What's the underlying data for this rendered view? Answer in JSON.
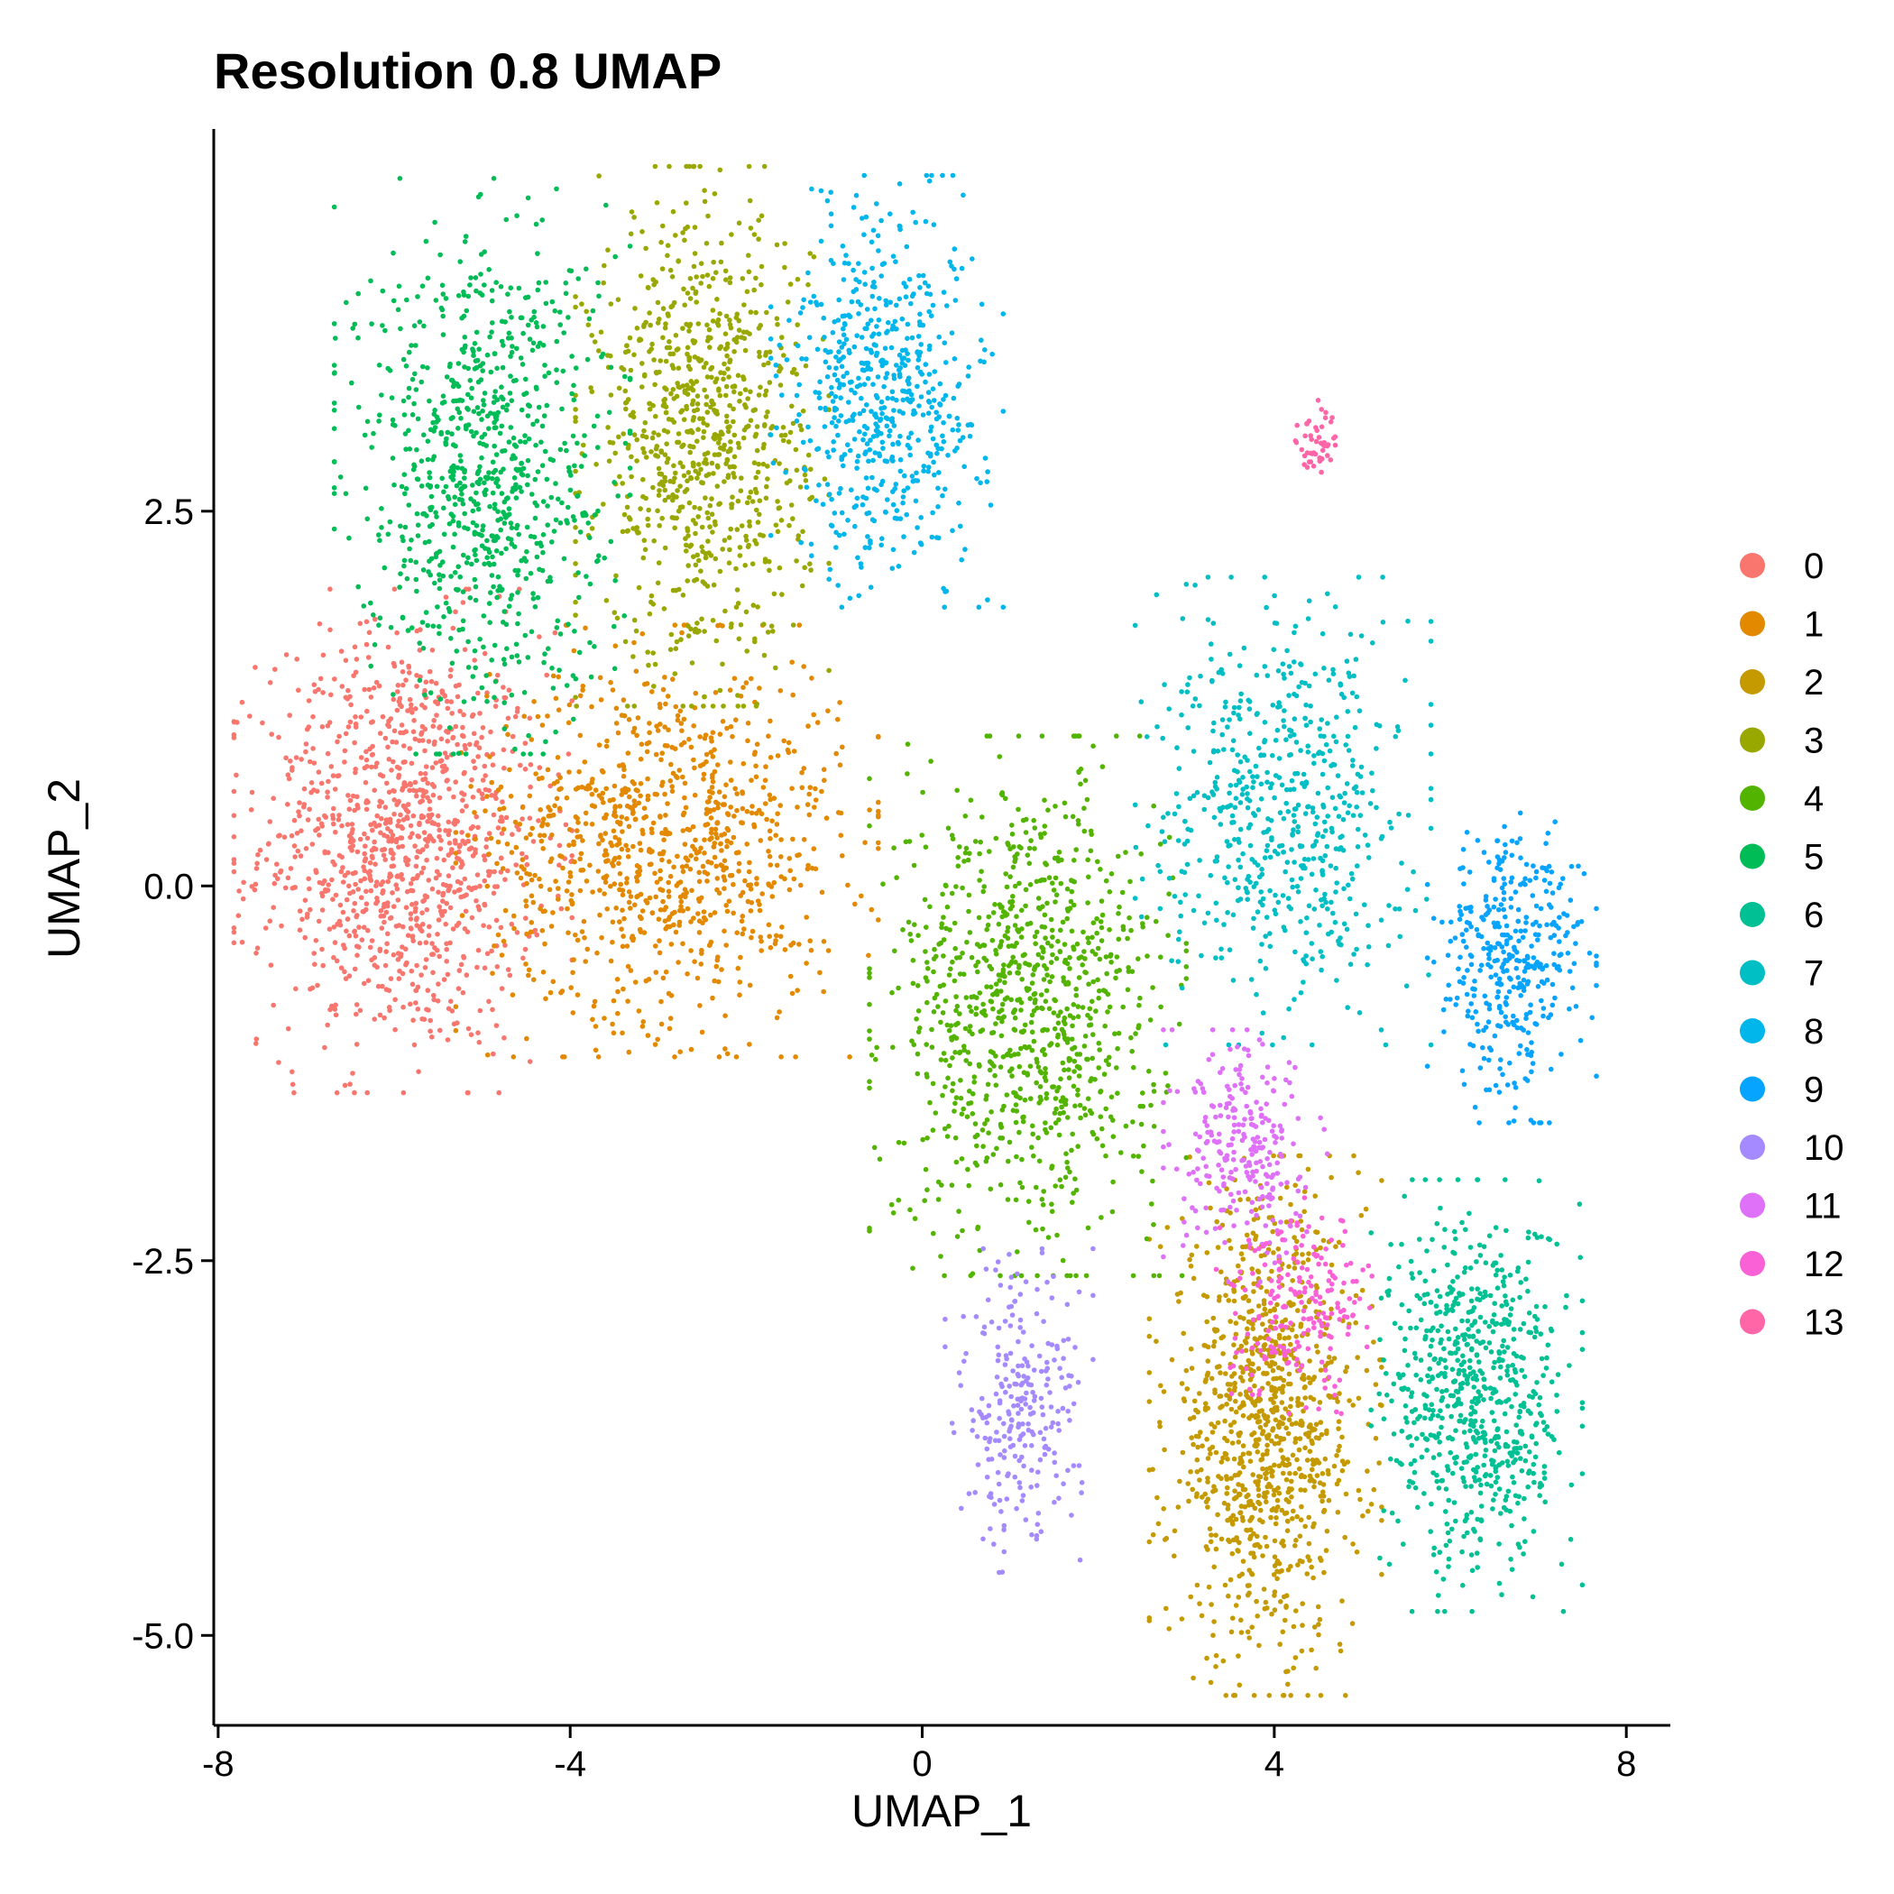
{
  "chart_data": {
    "type": "scatter",
    "title": "Resolution 0.8 UMAP",
    "xlabel": "UMAP_1",
    "ylabel": "UMAP_2",
    "xlim": [
      -8.05,
      8.5
    ],
    "ylim": [
      -5.6,
      5.05
    ],
    "x_ticks": [
      {
        "value": -8,
        "label": "-8"
      },
      {
        "value": -4,
        "label": "-4"
      },
      {
        "value": 0,
        "label": "0"
      },
      {
        "value": 4,
        "label": "4"
      },
      {
        "value": 8,
        "label": "8"
      }
    ],
    "y_ticks": [
      {
        "value": 2.5,
        "label": "2.5"
      },
      {
        "value": 0,
        "label": "0.0"
      },
      {
        "value": -2.5,
        "label": "-2.5"
      },
      {
        "value": -5,
        "label": "-5.0"
      }
    ],
    "grid": false,
    "legend_position": "right",
    "note_points": "Each cluster's points are summarized by its approximate centroid and spread (in UMAP units) read from the plot; individual point coordinates are not legible.",
    "series": [
      {
        "name": "0",
        "color": "#F8766D",
        "cx": -5.9,
        "cy": 0.3,
        "sx": 0.8,
        "sy": 0.7,
        "n": 1100
      },
      {
        "name": "1",
        "color": "#E38900",
        "cx": -2.9,
        "cy": 0.3,
        "sx": 1.0,
        "sy": 0.6,
        "n": 950
      },
      {
        "name": "2",
        "color": "#C49A00",
        "cx": 3.9,
        "cy": -3.6,
        "sx": 0.55,
        "sy": 0.75,
        "n": 1000
      },
      {
        "name": "3",
        "color": "#99A800",
        "cx": -2.5,
        "cy": 3.0,
        "sx": 0.6,
        "sy": 0.75,
        "n": 850
      },
      {
        "name": "4",
        "color": "#53B400",
        "cx": 1.2,
        "cy": -0.8,
        "sx": 0.75,
        "sy": 0.75,
        "n": 950
      },
      {
        "name": "5",
        "color": "#00BC56",
        "cx": -5.0,
        "cy": 2.8,
        "sx": 0.7,
        "sy": 0.8,
        "n": 850
      },
      {
        "name": "6",
        "color": "#00C094",
        "cx": 6.3,
        "cy": -3.4,
        "sx": 0.5,
        "sy": 0.6,
        "n": 700
      },
      {
        "name": "7",
        "color": "#00BFC4",
        "cx": 4.1,
        "cy": 0.5,
        "sx": 0.7,
        "sy": 0.65,
        "n": 600
      },
      {
        "name": "8",
        "color": "#00B6EB",
        "cx": -0.4,
        "cy": 3.3,
        "sx": 0.55,
        "sy": 0.6,
        "n": 600
      },
      {
        "name": "9",
        "color": "#06A4FF",
        "cx": 6.7,
        "cy": -0.5,
        "sx": 0.4,
        "sy": 0.45,
        "n": 380
      },
      {
        "name": "10",
        "color": "#A58AFF",
        "cx": 1.1,
        "cy": -3.5,
        "sx": 0.35,
        "sy": 0.45,
        "n": 260
      },
      {
        "name": "11",
        "color": "#DF70F8",
        "cx": 3.7,
        "cy": -1.8,
        "sx": 0.4,
        "sy": 0.35,
        "n": 260
      },
      {
        "name": "12",
        "color": "#FB61D7",
        "cx": 4.3,
        "cy": -2.8,
        "sx": 0.4,
        "sy": 0.3,
        "n": 200
      },
      {
        "name": "13",
        "color": "#FF66A8",
        "cx": 4.5,
        "cy": 3.0,
        "sx": 0.12,
        "sy": 0.1,
        "n": 50
      }
    ]
  }
}
